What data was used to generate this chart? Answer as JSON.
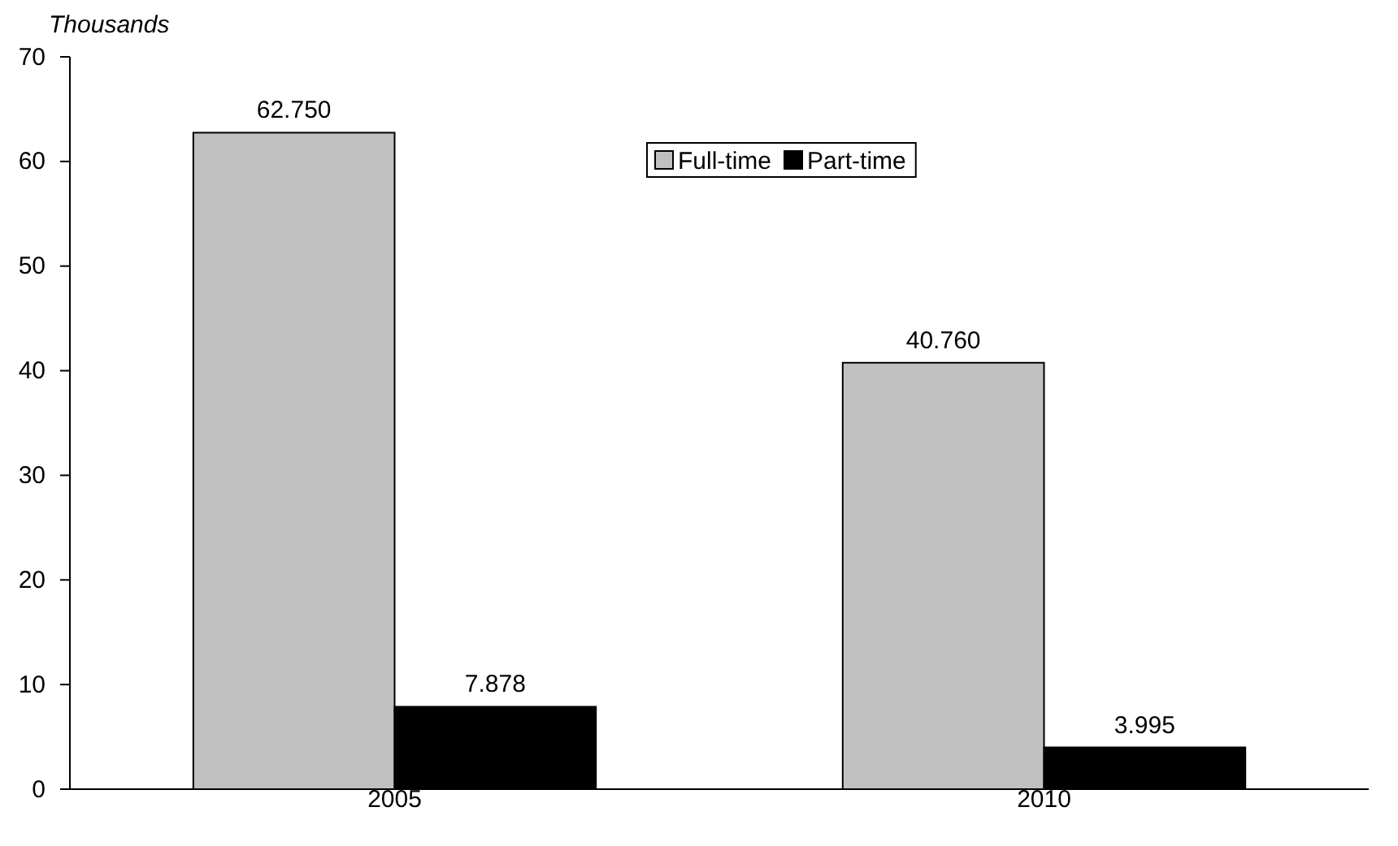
{
  "chart_data": {
    "type": "bar",
    "ylabel": "Thousands",
    "categories": [
      "2005",
      "2010"
    ],
    "series": [
      {
        "name": "Full-time",
        "color": "#c0c0c0",
        "values": [
          62.75,
          40.76
        ],
        "value_labels": [
          "62.750",
          "40.760"
        ]
      },
      {
        "name": "Part-time",
        "color": "#000000",
        "values": [
          7.878,
          3.995
        ],
        "value_labels": [
          "7.878",
          "3.995"
        ]
      }
    ],
    "ylim": [
      0,
      70
    ],
    "yticks": [
      0,
      10,
      20,
      30,
      40,
      50,
      60,
      70
    ],
    "grid": false,
    "legend": "top"
  }
}
